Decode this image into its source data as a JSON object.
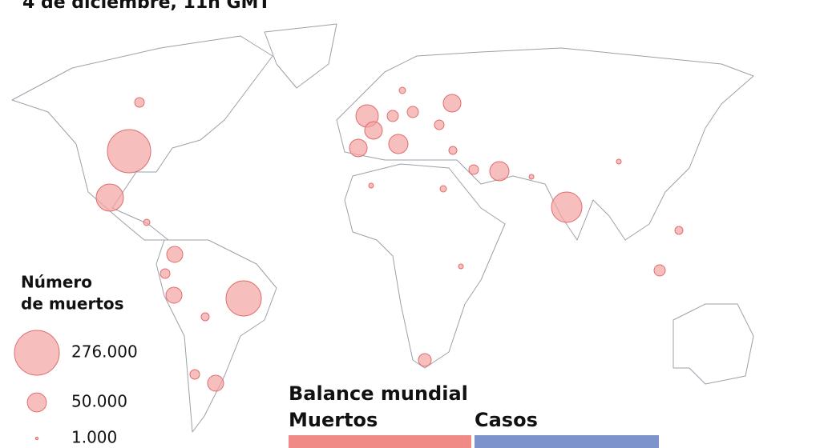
{
  "title": "4 de diciembre, 11h GMT",
  "legend": {
    "title_line1": "Número",
    "title_line2": "de muertos",
    "items": [
      {
        "value": 276000,
        "label": "276.000"
      },
      {
        "value": 50000,
        "label": "50.000"
      },
      {
        "value": 1000,
        "label": "1.000"
      }
    ]
  },
  "summary": {
    "title": "Balance mundial",
    "deaths_label": "Muertos",
    "cases_label": "Casos"
  }
}
